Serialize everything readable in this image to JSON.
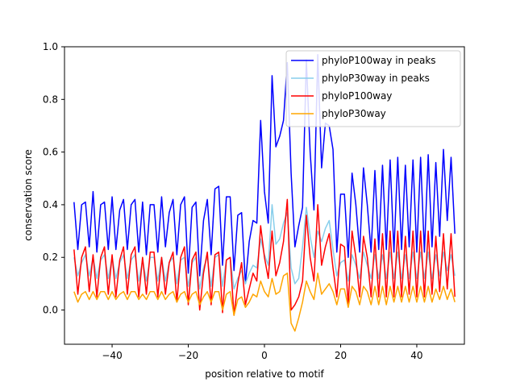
{
  "chart_data": {
    "type": "line",
    "title": "",
    "xlabel": "position relative to motif",
    "ylabel": "conservation score",
    "xlim": [
      -52.5,
      52.5
    ],
    "ylim": [
      -0.13,
      1.0
    ],
    "xticks": [
      -40,
      -20,
      0,
      20,
      40
    ],
    "yticks": [
      0.0,
      0.2,
      0.4,
      0.6,
      0.8,
      1.0
    ],
    "xtick_labels": [
      "−40",
      "−20",
      "0",
      "20",
      "40"
    ],
    "ytick_labels": [
      "0.0",
      "0.2",
      "0.4",
      "0.6",
      "0.8",
      "1.0"
    ],
    "grid": false,
    "legend_position": "top-right",
    "x": [
      -50,
      -49,
      -48,
      -47,
      -46,
      -45,
      -44,
      -43,
      -42,
      -41,
      -40,
      -39,
      -38,
      -37,
      -36,
      -35,
      -34,
      -33,
      -32,
      -31,
      -30,
      -29,
      -28,
      -27,
      -26,
      -25,
      -24,
      -23,
      -22,
      -21,
      -20,
      -19,
      -18,
      -17,
      -16,
      -15,
      -14,
      -13,
      -12,
      -11,
      -10,
      -9,
      -8,
      -7,
      -6,
      -5,
      -4,
      -3,
      -2,
      -1,
      0,
      1,
      2,
      3,
      4,
      5,
      6,
      7,
      8,
      9,
      10,
      11,
      12,
      13,
      14,
      15,
      16,
      17,
      18,
      19,
      20,
      21,
      22,
      23,
      24,
      25,
      26,
      27,
      28,
      29,
      30,
      31,
      32,
      33,
      34,
      35,
      36,
      37,
      38,
      39,
      40,
      41,
      42,
      43,
      44,
      45,
      46,
      47,
      48,
      49,
      50
    ],
    "series": [
      {
        "name": "phyloP100way in peaks",
        "color": "#0000ff",
        "values": [
          0.41,
          0.23,
          0.4,
          0.41,
          0.24,
          0.45,
          0.22,
          0.4,
          0.41,
          0.23,
          0.43,
          0.23,
          0.38,
          0.42,
          0.23,
          0.4,
          0.42,
          0.22,
          0.41,
          0.21,
          0.4,
          0.4,
          0.22,
          0.43,
          0.24,
          0.37,
          0.42,
          0.21,
          0.4,
          0.43,
          0.14,
          0.39,
          0.41,
          0.13,
          0.34,
          0.42,
          0.21,
          0.46,
          0.47,
          0.17,
          0.43,
          0.43,
          0.15,
          0.36,
          0.37,
          0.1,
          0.26,
          0.34,
          0.33,
          0.72,
          0.45,
          0.33,
          0.89,
          0.62,
          0.66,
          0.72,
          0.94,
          0.52,
          0.24,
          0.32,
          0.39,
          0.95,
          0.6,
          0.38,
          0.97,
          0.54,
          0.71,
          0.7,
          0.61,
          0.22,
          0.44,
          0.44,
          0.2,
          0.52,
          0.4,
          0.22,
          0.54,
          0.4,
          0.22,
          0.53,
          0.23,
          0.55,
          0.23,
          0.57,
          0.22,
          0.58,
          0.23,
          0.55,
          0.24,
          0.57,
          0.22,
          0.58,
          0.22,
          0.59,
          0.24,
          0.56,
          0.28,
          0.61,
          0.34,
          0.58,
          0.29
        ]
      },
      {
        "name": "phyloP30way in peaks",
        "color": "#87ceeb",
        "values": [
          0.2,
          0.13,
          0.18,
          0.21,
          0.13,
          0.2,
          0.12,
          0.19,
          0.21,
          0.12,
          0.2,
          0.12,
          0.18,
          0.21,
          0.12,
          0.19,
          0.21,
          0.11,
          0.19,
          0.11,
          0.2,
          0.2,
          0.11,
          0.2,
          0.11,
          0.18,
          0.2,
          0.1,
          0.19,
          0.2,
          0.09,
          0.18,
          0.2,
          0.08,
          0.16,
          0.2,
          0.09,
          0.2,
          0.21,
          0.09,
          0.19,
          0.2,
          0.08,
          0.12,
          0.15,
          0.1,
          0.14,
          0.17,
          0.16,
          0.27,
          0.21,
          0.17,
          0.4,
          0.25,
          0.27,
          0.33,
          0.37,
          0.16,
          0.1,
          0.12,
          0.24,
          0.39,
          0.28,
          0.2,
          0.3,
          0.26,
          0.31,
          0.34,
          0.23,
          0.13,
          0.18,
          0.19,
          0.11,
          0.21,
          0.17,
          0.12,
          0.22,
          0.17,
          0.12,
          0.21,
          0.12,
          0.21,
          0.12,
          0.22,
          0.12,
          0.22,
          0.12,
          0.21,
          0.12,
          0.22,
          0.12,
          0.22,
          0.12,
          0.22,
          0.12,
          0.21,
          0.13,
          0.22,
          0.15,
          0.21,
          0.13
        ]
      },
      {
        "name": "phyloP100way",
        "color": "#ff0000",
        "values": [
          0.23,
          0.06,
          0.2,
          0.24,
          0.07,
          0.21,
          0.05,
          0.2,
          0.24,
          0.06,
          0.21,
          0.05,
          0.19,
          0.24,
          0.06,
          0.21,
          0.24,
          0.05,
          0.2,
          0.06,
          0.22,
          0.22,
          0.05,
          0.2,
          0.06,
          0.18,
          0.22,
          0.03,
          0.2,
          0.24,
          0.02,
          0.19,
          0.22,
          0.0,
          0.14,
          0.22,
          0.02,
          0.21,
          0.22,
          -0.01,
          0.19,
          0.2,
          -0.02,
          0.1,
          0.18,
          0.02,
          0.08,
          0.14,
          0.11,
          0.32,
          0.2,
          0.12,
          0.3,
          0.13,
          0.18,
          0.26,
          0.42,
          0.0,
          0.02,
          0.05,
          0.11,
          0.36,
          0.2,
          0.11,
          0.4,
          0.17,
          0.24,
          0.29,
          0.16,
          0.05,
          0.25,
          0.24,
          0.02,
          0.3,
          0.2,
          0.05,
          0.28,
          0.2,
          0.05,
          0.27,
          0.05,
          0.29,
          0.05,
          0.3,
          0.05,
          0.3,
          0.05,
          0.28,
          0.06,
          0.3,
          0.05,
          0.3,
          0.05,
          0.3,
          0.06,
          0.28,
          0.07,
          0.29,
          0.08,
          0.29,
          0.05
        ]
      },
      {
        "name": "phyloP30way",
        "color": "#ffa500",
        "values": [
          0.07,
          0.03,
          0.06,
          0.07,
          0.04,
          0.07,
          0.04,
          0.07,
          0.07,
          0.04,
          0.07,
          0.04,
          0.06,
          0.07,
          0.04,
          0.07,
          0.07,
          0.04,
          0.06,
          0.04,
          0.07,
          0.07,
          0.04,
          0.07,
          0.04,
          0.06,
          0.07,
          0.03,
          0.06,
          0.07,
          0.03,
          0.06,
          0.07,
          0.02,
          0.05,
          0.07,
          0.03,
          0.07,
          0.07,
          0.0,
          0.06,
          0.07,
          -0.02,
          0.04,
          0.05,
          0.01,
          0.03,
          0.06,
          0.05,
          0.11,
          0.07,
          0.05,
          0.12,
          0.06,
          0.07,
          0.13,
          0.14,
          -0.05,
          -0.08,
          -0.03,
          0.03,
          0.11,
          0.07,
          0.04,
          0.14,
          0.06,
          0.08,
          0.1,
          0.07,
          0.02,
          0.08,
          0.08,
          0.01,
          0.09,
          0.07,
          0.02,
          0.09,
          0.07,
          0.02,
          0.09,
          0.02,
          0.09,
          0.02,
          0.09,
          0.03,
          0.09,
          0.03,
          0.09,
          0.03,
          0.09,
          0.03,
          0.09,
          0.03,
          0.09,
          0.03,
          0.08,
          0.04,
          0.09,
          0.04,
          0.08,
          0.03
        ]
      }
    ]
  }
}
